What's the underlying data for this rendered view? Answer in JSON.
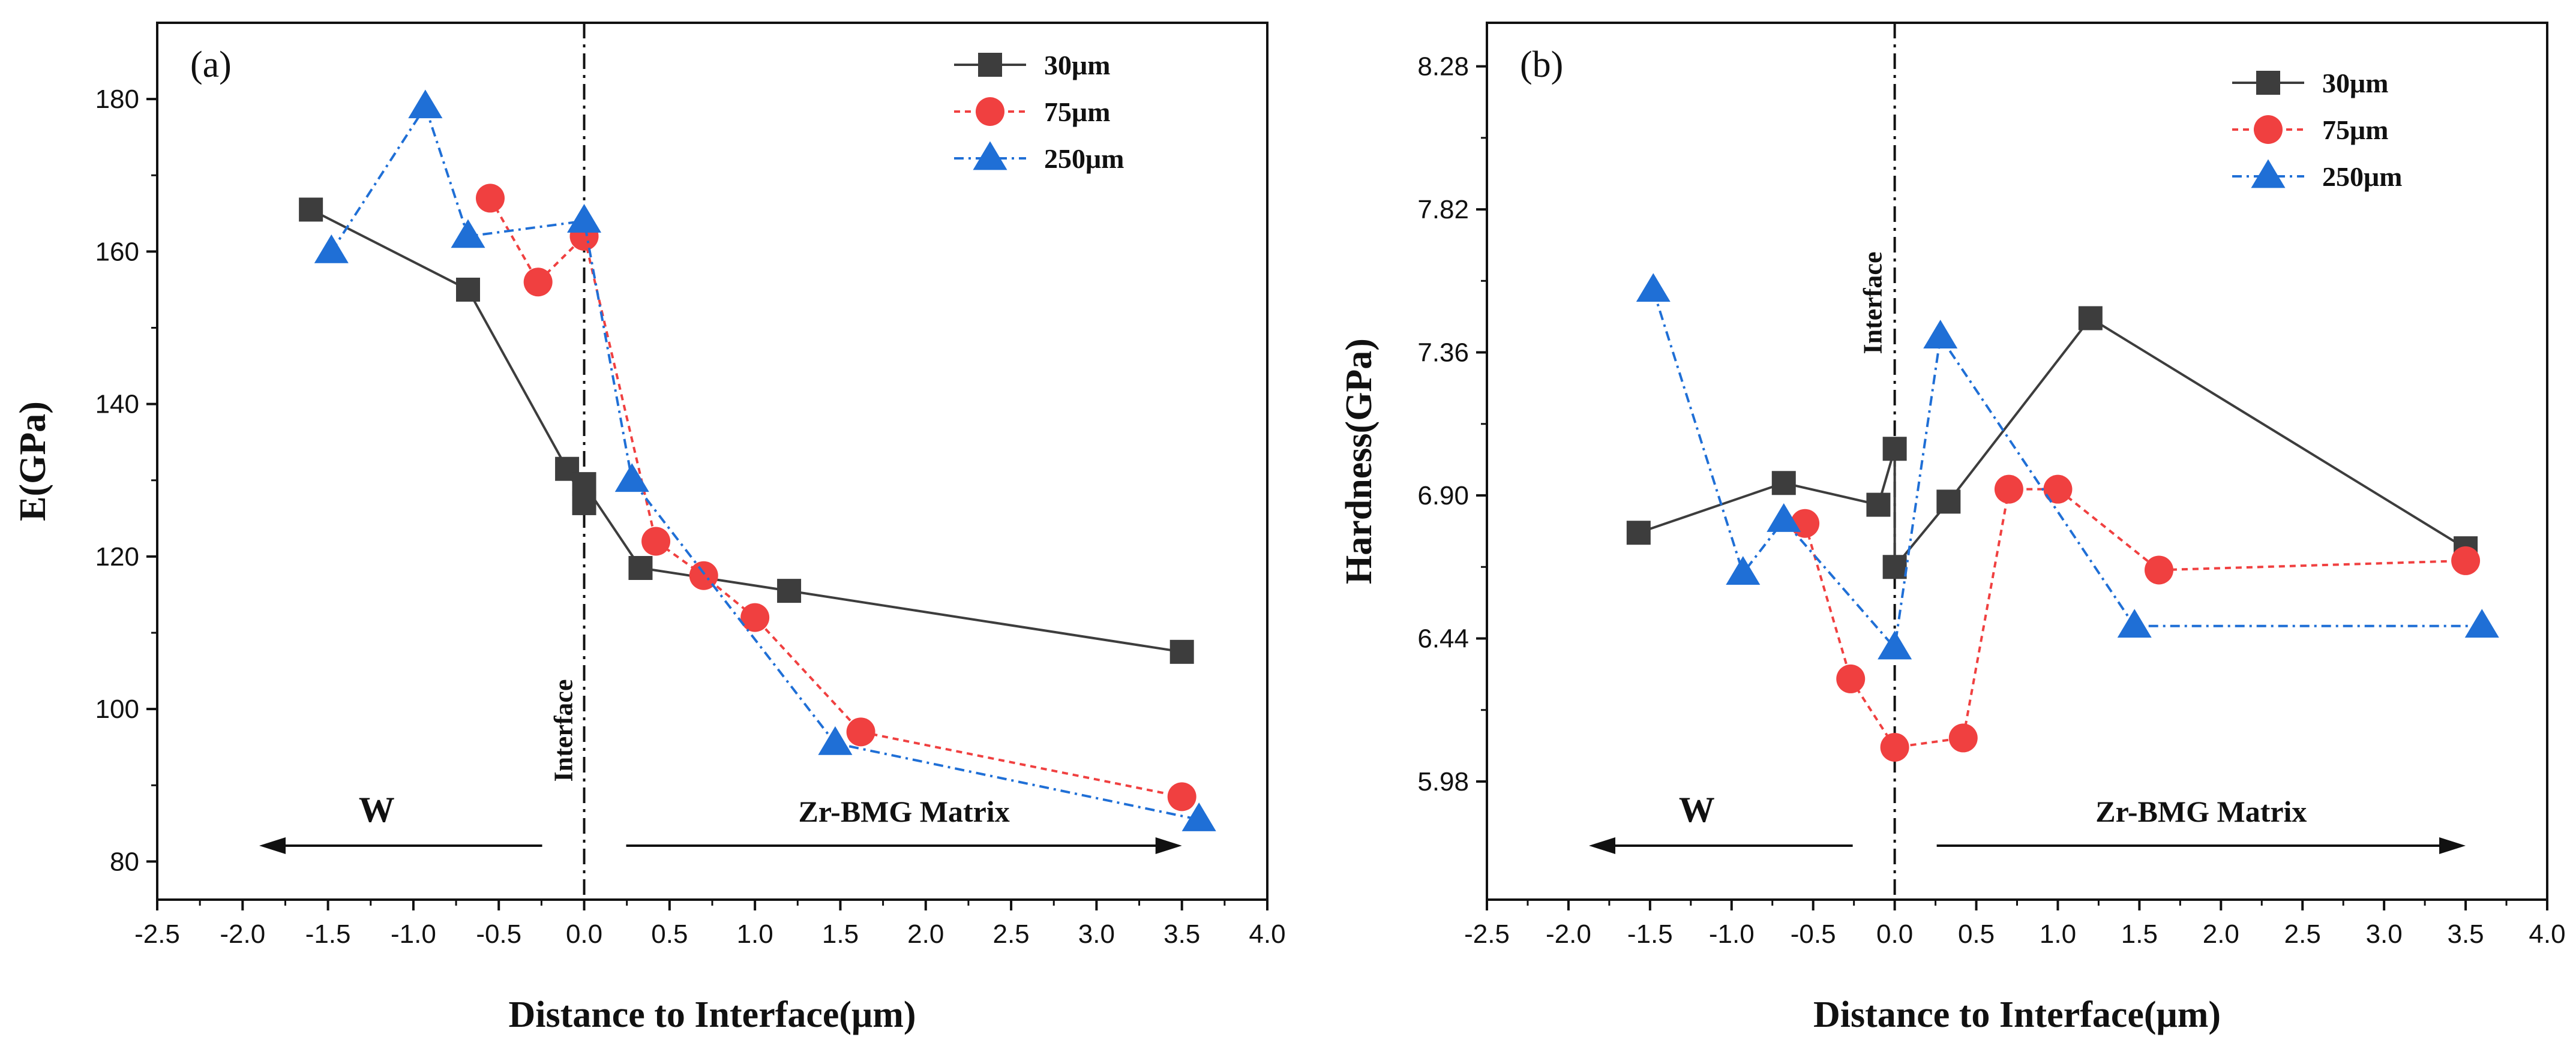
{
  "chart_data": [
    {
      "type": "line",
      "panel_label": "(a)",
      "xlabel": "Distance to Interface(μm)",
      "ylabel": "E(GPa)",
      "xlim": [
        -2.5,
        4.0
      ],
      "ylim": [
        75,
        190
      ],
      "xticks": [
        -2.5,
        -2.0,
        -1.5,
        -1.0,
        -0.5,
        0.0,
        0.5,
        1.0,
        1.5,
        2.0,
        2.5,
        3.0,
        3.5,
        4.0
      ],
      "xtick_labels": [
        "-2.5",
        "-2.0",
        "-1.5",
        "-1.0",
        "-0.5",
        "0.0",
        "0.5",
        "1.0",
        "1.5",
        "2.0",
        "2.5",
        "3.0",
        "3.5",
        "4.0"
      ],
      "yticks": [
        80,
        100,
        120,
        140,
        160,
        180
      ],
      "ytick_labels": [
        "80",
        "100",
        "120",
        "140",
        "160",
        "180"
      ],
      "legend_position": "top-right",
      "interface_label": "Interface",
      "left_region_label": "W",
      "right_region_label": "Zr-BMG Matrix",
      "series": [
        {
          "name": "30μm",
          "marker": "square",
          "color": "#3d3d3d",
          "dash": "",
          "x": [
            -1.6,
            -0.68,
            -0.1,
            0.0,
            0.0,
            0.33,
            1.2,
            3.5
          ],
          "y": [
            165.5,
            155,
            131.5,
            127,
            129.5,
            118.5,
            115.5,
            107.5
          ]
        },
        {
          "name": "75μm",
          "marker": "circle",
          "color": "#f04040",
          "dash": "10 8",
          "x": [
            -0.55,
            -0.27,
            0.0,
            0.42,
            0.7,
            1.0,
            1.62,
            3.5
          ],
          "y": [
            167,
            156,
            162,
            122,
            117.5,
            112,
            97,
            88.5
          ]
        },
        {
          "name": "250μm",
          "marker": "triangle",
          "color": "#1f6fd6",
          "dash": "16 8 4 8",
          "x": [
            -1.48,
            -0.93,
            -0.68,
            0.0,
            0.28,
            1.47,
            3.6
          ],
          "y": [
            160,
            179,
            162,
            164,
            130,
            95.5,
            85.5
          ]
        }
      ]
    },
    {
      "type": "line",
      "panel_label": "(b)",
      "xlabel": "Distance to Interface(μm)",
      "ylabel": "Hardness(GPa)",
      "xlim": [
        -2.5,
        4.0
      ],
      "ylim": [
        5.6,
        8.42
      ],
      "xticks": [
        -2.5,
        -2.0,
        -1.5,
        -1.0,
        -0.5,
        0.0,
        0.5,
        1.0,
        1.5,
        2.0,
        2.5,
        3.0,
        3.5,
        4.0
      ],
      "xtick_labels": [
        "-2.5",
        "-2.0",
        "-1.5",
        "-1.0",
        "-0.5",
        "0.0",
        "0.5",
        "1.0",
        "1.5",
        "2.0",
        "2.5",
        "3.0",
        "3.5",
        "4.0"
      ],
      "yticks": [
        5.98,
        6.44,
        6.9,
        7.36,
        7.82,
        8.28
      ],
      "ytick_labels": [
        "5.98",
        "6.44",
        "6.90",
        "7.36",
        "7.82",
        "8.28"
      ],
      "legend_position": "top-right",
      "interface_label": "Interface",
      "left_region_label": "W",
      "right_region_label": "Zr-BMG Matrix",
      "series": [
        {
          "name": "30μm",
          "marker": "square",
          "color": "#3d3d3d",
          "dash": "",
          "x": [
            -1.57,
            -0.68,
            -0.1,
            0.0,
            0.0,
            0.33,
            1.2,
            3.5
          ],
          "y": [
            6.78,
            6.94,
            6.87,
            7.05,
            6.67,
            6.88,
            7.47,
            6.73
          ]
        },
        {
          "name": "75μm",
          "marker": "circle",
          "color": "#f04040",
          "dash": "10 8",
          "x": [
            -0.55,
            -0.27,
            0.0,
            0.42,
            0.7,
            1.0,
            1.62,
            3.5
          ],
          "y": [
            6.81,
            6.31,
            6.09,
            6.12,
            6.92,
            6.92,
            6.66,
            6.69
          ]
        },
        {
          "name": "250μm",
          "marker": "triangle",
          "color": "#1f6fd6",
          "dash": "16 8 4 8",
          "x": [
            -1.48,
            -0.93,
            -0.68,
            0.0,
            0.28,
            1.47,
            3.6
          ],
          "y": [
            7.56,
            6.65,
            6.82,
            6.41,
            7.41,
            6.48,
            6.48
          ]
        }
      ]
    }
  ]
}
